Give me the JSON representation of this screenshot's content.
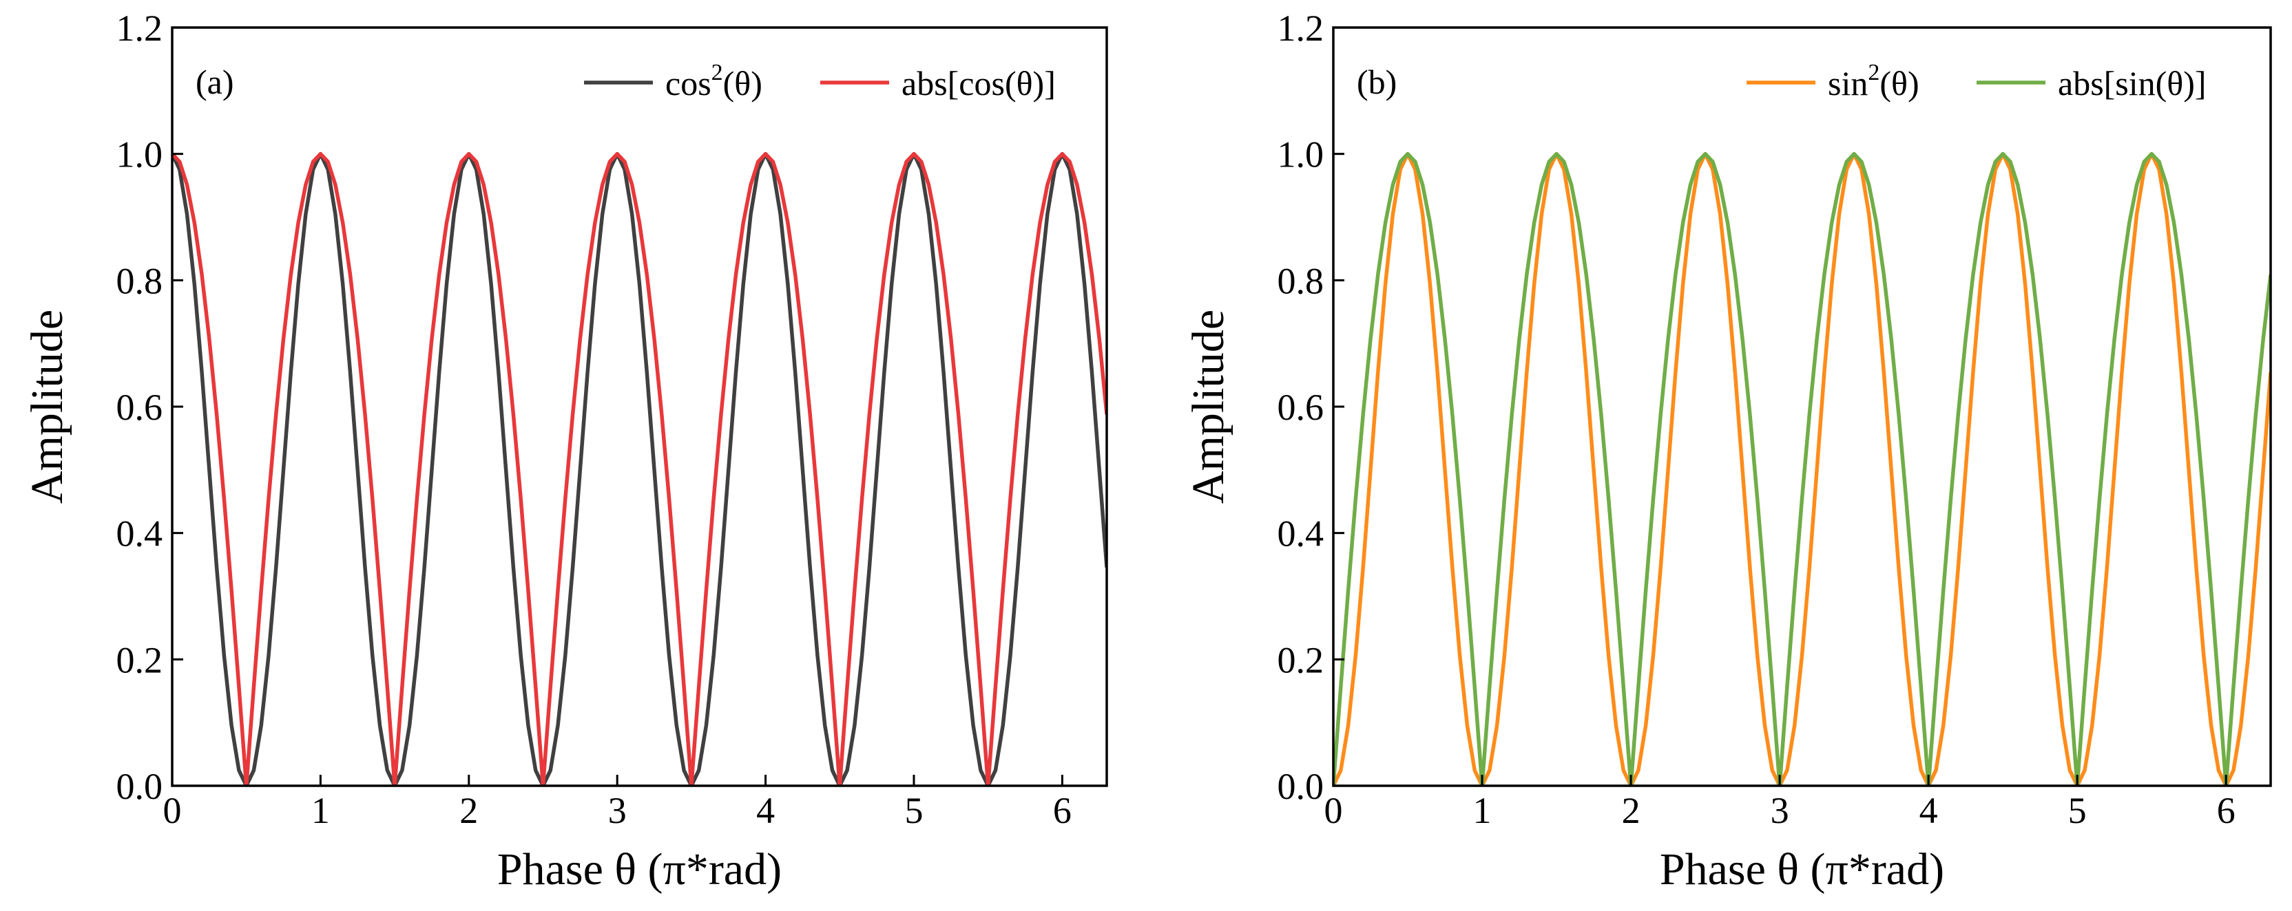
{
  "chart_data": [
    {
      "type": "line",
      "panel_label": "(a)",
      "xlabel": "Phase θ (π*rad)",
      "ylabel": "Amplitude",
      "xlim": [
        0,
        6.3
      ],
      "ylim": [
        0,
        1.2
      ],
      "x_ticks": [
        "0",
        "1",
        "2",
        "3",
        "4",
        "5",
        "6"
      ],
      "y_ticks": [
        "0.0",
        "0.2",
        "0.4",
        "0.6",
        "0.8",
        "1.0",
        "1.2"
      ],
      "legend_position": "top-right",
      "grid": false,
      "sample_step": 0.05,
      "series": [
        {
          "name": "cos²(θ)",
          "legend_base": "cos",
          "legend_sup": "2",
          "legend_tail": "(θ)",
          "color": "#404040",
          "function": "cos^2(πθ)"
        },
        {
          "name": "abs[cos(θ)]",
          "legend_base": "abs[cos(θ)]",
          "legend_sup": "",
          "legend_tail": "",
          "color": "#e8383b",
          "function": "|cos(πθ)|"
        }
      ]
    },
    {
      "type": "line",
      "panel_label": "(b)",
      "xlabel": "Phase θ (π*rad)",
      "ylabel": "Amplitude",
      "xlim": [
        0,
        6.3
      ],
      "ylim": [
        0,
        1.2
      ],
      "x_ticks": [
        "0",
        "1",
        "2",
        "3",
        "4",
        "5",
        "6"
      ],
      "y_ticks": [
        "0.0",
        "0.2",
        "0.4",
        "0.6",
        "0.8",
        "1.0",
        "1.2"
      ],
      "legend_position": "top-right",
      "grid": false,
      "sample_step": 0.05,
      "series": [
        {
          "name": "sin²(θ)",
          "legend_base": "sin",
          "legend_sup": "2",
          "legend_tail": "(θ)",
          "color": "#ff8c1a",
          "function": "sin^2(πθ)"
        },
        {
          "name": "abs[sin(θ)]",
          "legend_base": "abs[sin(θ)]",
          "legend_sup": "",
          "legend_tail": "",
          "color": "#70ad47",
          "function": "|sin(πθ)|"
        }
      ]
    }
  ]
}
